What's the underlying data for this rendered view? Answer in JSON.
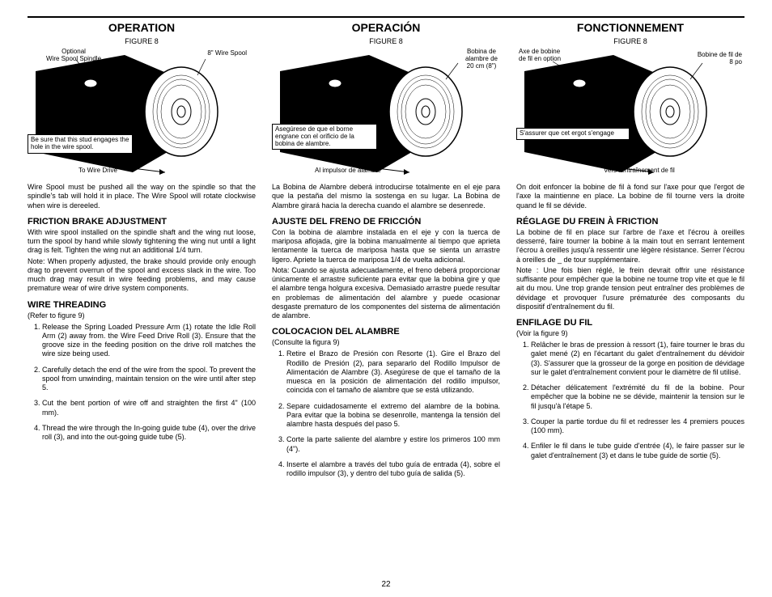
{
  "pageNumber": "22",
  "columns": [
    {
      "title": "OPERATION",
      "figLabel": "FIGURE 8",
      "callouts": {
        "topLeft": "Optional\nWire Spool Spindle",
        "topRight": "8\" Wire Spool",
        "midLeft": "Be sure that this stud engages the hole in the wire spool.",
        "bottom": "To Wire Drive"
      },
      "intro": "Wire Spool must be pushed all the way on the spindle so that the spindle's tab will hold it in place. The Wire Spool will rotate clockwise when wire is dereeled.",
      "head1": "FRICTION  BRAKE ADJUSTMENT",
      "body1": "With wire spool installed on the spindle shaft and the wing nut loose, turn the spool by hand while slowly tightening the wing nut until a light drag is felt. Tighten the wing nut an additional 1/4 turn.",
      "body1b": "Note: When properly adjusted, the brake should provide only enough drag to prevent overrun of the spool and excess slack in the wire. Too much drag may result in wire feeding problems, and may cause premature wear of wire drive system components.",
      "head2": "WIRE THREADING",
      "ref2": "(Refer to figure 9)",
      "list": [
        "Release the Spring Loaded Pressure Arm (1) rotate the Idle Roll Arm (2) away from. the Wire Feed Drive Roll (3). Ensure that the groove size in the feeding position on the drive roll matches the wire size being used.",
        "Carefully detach the end of the wire from the spool. To prevent the spool from unwinding, maintain tension on the wire until after step 5.",
        "Cut the bent portion of wire off and straighten the first 4\" (100 mm).",
        "Thread the wire through the In-going guide tube (4), over the drive roll (3), and into the out-going guide tube (5)."
      ]
    },
    {
      "title": "OPERACIÓN",
      "figLabel": "FIGURE 8",
      "callouts": {
        "topRight": "Bobina de\nalambre de\n20 cm (8\")",
        "midLeft": "Asegúrese de que el borne engrane con el orificio de la bobina de alambre.",
        "bottom": "Al impulsor de alambre"
      },
      "intro": "La Bobina de Alambre deberá introducirse totalmente en el eje para que la pestaña del mismo la sostenga en su lugar. La Bobina de Alambre girará hacia la derecha cuando el alambre se desenrede.",
      "head1": "AJUSTE DEL FRENO DE FRICCIÓN",
      "body1": "Con la bobina de alambre instalada en el eje y con la tuerca de mariposa aflojada, gire la bobina manualmente al tiempo que aprieta lentamente la tuerca de mariposa hasta que se sienta un arrastre ligero. Apriete la tuerca de mariposa 1/4 de vuelta adicional.",
      "body1b": "Nota: Cuando se ajusta adecuadamente, el freno deberá proporcionar únicamente el arrastre suficiente para evitar que la bobina gire y que el alambre tenga holgura excesiva. Demasiado arrastre puede resultar en problemas de alimentación del alambre y puede ocasionar desgaste prematuro de los componentes del sistema de alimentación de alambre.",
      "head2": "COLOCACION DEL ALAMBRE",
      "ref2": "(Consulte la figura 9)",
      "list": [
        "Retire el Brazo de Presión con Resorte (1). Gire el Brazo del Rodillo de Presión (2), para separarlo del Rodillo Impulsor de Alimentación de Alambre (3). Asegúrese de que el tamaño de la muesca en la posición de alimentación del rodillo impulsor, coincida con el tamaño de alambre que se está utilizando.",
        "Separe cuidadosamente el extremo del alambre de la bobina. Para evitar que la bobina se desenrolle, mantenga la tensión del alambre hasta después del paso 5.",
        "Corte la parte saliente del alambre y estire los primeros 100 mm (4\").",
        "Inserte el alambre a través del tubo guía de entrada (4), sobre el rodillo impulsor (3), y dentro del tubo guía de salida (5)."
      ]
    },
    {
      "title": "FONCTIONNEMENT",
      "figLabel": "FIGURE 8",
      "callouts": {
        "topLeft": "Axe de bobine\nde fil en option",
        "topRight": "Bobine de fil de\n8 po",
        "midLeft": "S'assurer que cet ergot s'engage",
        "bottom": "Vers l'entraînement de fil"
      },
      "intro": "On doit enfoncer la bobine de fil à fond sur l'axe pour que l'ergot de l'axe la maintienne en place.  La bobine de fil tourne vers la droite quand le fil se dévide.",
      "head1": "RÉGLAGE DU FREIN À FRICTION",
      "body1": "La bobine de fil en place sur l'arbre de l'axe et l'écrou à oreilles desserré, faire tourner la bobine à la main tout en serrant lentement l'écrou à oreilles jusqu'à ressentir une légère résistance.  Serrer l'écrou à oreilles de _ de tour supplémentaire.",
      "body1b": "Note : Une fois bien réglé, le frein devrait offrir une résistance suffisante pour empêcher que la bobine ne tourne trop vite et que le fil ait du mou.  Une trop grande tension peut entraîner des problèmes de dévidage et provoquer l'usure prématurée des composants du dispositif d'entraînement du fil.",
      "head2": "ENFILAGE DU FIL",
      "ref2": "(Voir la figure 9)",
      "list": [
        "Relâcher le bras de pression à ressort (1), faire tourner le bras du galet mené (2) en l'écartant du galet d'entraînement du dévidoir (3).  S'assurer que la grosseur de la gorge en position de dévidage sur le galet d'entraînement convient pour le diamètre de fil utilisé.",
        "Détacher délicatement l'extrémité du fil de la bobine. Pour empêcher que la bobine ne se dévide, maintenir la tension sur le fil jusqu'à l'étape 5.",
        "Couper la partie tordue du fil et redresser les 4 premiers pouces (100 mm).",
        "Enfiler le fil dans le tube guide d'entrée (4), le faire passer sur le galet d'entraînement (3) et dans le tube guide de sortie (5)."
      ]
    }
  ]
}
